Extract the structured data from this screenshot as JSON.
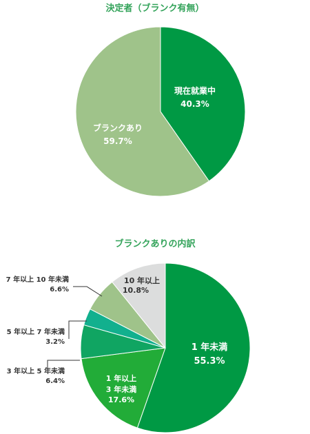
{
  "chart_data": [
    {
      "type": "pie",
      "title": "決定者（ブランク有無）",
      "slices": [
        {
          "label": "現在就業中",
          "value": 40.3,
          "value_label": "40.3%",
          "color": "#009944"
        },
        {
          "label": "ブランクあり",
          "value": 59.7,
          "value_label": "59.7%",
          "color": "#9fc38a"
        }
      ]
    },
    {
      "type": "pie",
      "title": "ブランクありの内訳",
      "slices": [
        {
          "label": "1 年未満",
          "value": 55.3,
          "value_label": "55.3%",
          "color": "#009944"
        },
        {
          "label": "1 年以上 3 年未満",
          "label_lines": [
            "1 年以上",
            "3 年未満"
          ],
          "value": 17.6,
          "value_label": "17.6%",
          "color": "#22ac38"
        },
        {
          "label": "3 年以上 5 年未満",
          "value": 6.4,
          "value_label": "6.4%",
          "color": "#10a562"
        },
        {
          "label": "5 年以上 7 年未満",
          "value": 3.2,
          "value_label": "3.2%",
          "color": "#12b08e"
        },
        {
          "label": "7 年以上 10 年未満",
          "value": 6.6,
          "value_label": "6.6%",
          "color": "#9fc38a"
        },
        {
          "label": "10 年以上",
          "value": 10.8,
          "value_label": "10.8%",
          "color": "#dcdddd"
        }
      ]
    }
  ]
}
